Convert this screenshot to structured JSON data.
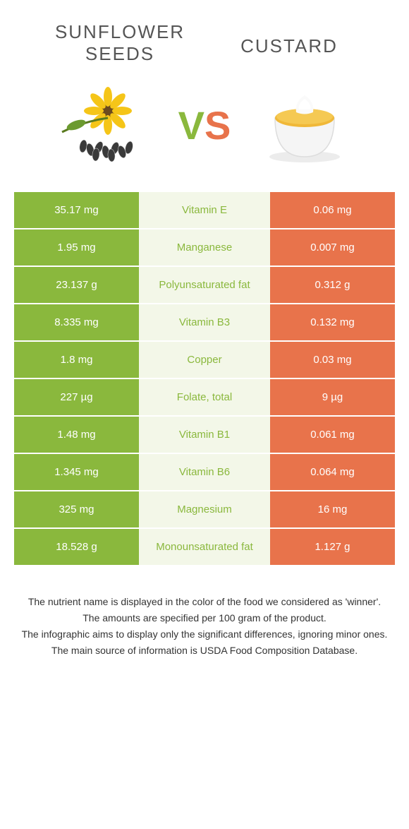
{
  "colors": {
    "green": "#8ab83d",
    "green_light": "#f3f7e8",
    "orange": "#e8734b",
    "orange_light": "#fdeee9",
    "vs_v": "#8ab83d",
    "vs_s": "#e8734b"
  },
  "food_left": {
    "title_line1": "SUNFLOWER",
    "title_line2": "SEEDS"
  },
  "food_right": {
    "title": "CUSTARD"
  },
  "vs": {
    "v": "V",
    "s": "S"
  },
  "rows": [
    {
      "left": "35.17 mg",
      "label": "Vitamin E",
      "right": "0.06 mg",
      "winner": "left"
    },
    {
      "left": "1.95 mg",
      "label": "Manganese",
      "right": "0.007 mg",
      "winner": "left"
    },
    {
      "left": "23.137 g",
      "label": "Polyunsaturated fat",
      "right": "0.312 g",
      "winner": "left"
    },
    {
      "left": "8.335 mg",
      "label": "Vitamin B3",
      "right": "0.132 mg",
      "winner": "left"
    },
    {
      "left": "1.8 mg",
      "label": "Copper",
      "right": "0.03 mg",
      "winner": "left"
    },
    {
      "left": "227 µg",
      "label": "Folate, total",
      "right": "9 µg",
      "winner": "left"
    },
    {
      "left": "1.48 mg",
      "label": "Vitamin B1",
      "right": "0.061 mg",
      "winner": "left"
    },
    {
      "left": "1.345 mg",
      "label": "Vitamin B6",
      "right": "0.064 mg",
      "winner": "left"
    },
    {
      "left": "325 mg",
      "label": "Magnesium",
      "right": "16 mg",
      "winner": "left"
    },
    {
      "left": "18.528 g",
      "label": "Monounsaturated fat",
      "right": "1.127 g",
      "winner": "left"
    }
  ],
  "footer": {
    "line1": "The nutrient name is displayed in the color of the food we considered as 'winner'.",
    "line2": "The amounts are specified per 100 gram of the product.",
    "line3": "The infographic aims to display only the significant differences, ignoring minor ones.",
    "line4": "The main source of information is USDA Food Composition Database."
  }
}
